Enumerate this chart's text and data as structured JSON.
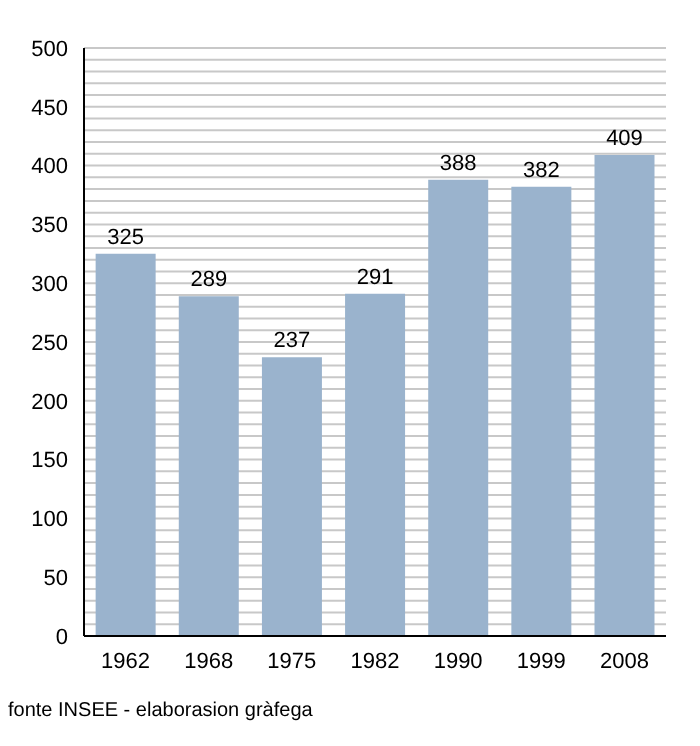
{
  "chart_data": {
    "type": "bar",
    "categories": [
      "1962",
      "1968",
      "1975",
      "1982",
      "1990",
      "1999",
      "2008"
    ],
    "values": [
      325,
      289,
      237,
      291,
      388,
      382,
      409
    ],
    "color": "#9ab3cd",
    "data_labels": true,
    "grid": "y",
    "ylim": [
      0,
      500
    ],
    "yticks": [
      0,
      {
        "value": 10,
        "label": null
      },
      {
        "value": 20,
        "label": null
      },
      {
        "value": 30,
        "label": null
      },
      {
        "value": 40,
        "label": null
      },
      50,
      {
        "value": 60,
        "label": null
      },
      {
        "value": 70,
        "label": null
      },
      {
        "value": 80,
        "label": null
      },
      {
        "value": 90,
        "label": null
      },
      100,
      {
        "value": 110,
        "label": null
      },
      {
        "value": 120,
        "label": null
      },
      {
        "value": 130,
        "label": null
      },
      {
        "value": 140,
        "label": null
      },
      150,
      {
        "value": 160,
        "label": null
      },
      {
        "value": 170,
        "label": null
      },
      {
        "value": 180,
        "label": null
      },
      {
        "value": 190,
        "label": null
      },
      200,
      {
        "value": 210,
        "label": null
      },
      {
        "value": 220,
        "label": null
      },
      {
        "value": 230,
        "label": null
      },
      {
        "value": 240,
        "label": null
      },
      250,
      {
        "value": 260,
        "label": null
      },
      {
        "value": 270,
        "label": null
      },
      {
        "value": 280,
        "label": null
      },
      {
        "value": 290,
        "label": null
      },
      300,
      {
        "value": 310,
        "label": null
      },
      {
        "value": 320,
        "label": null
      },
      {
        "value": 330,
        "label": null
      },
      {
        "value": 340,
        "label": null
      },
      350,
      {
        "value": 360,
        "label": null
      },
      {
        "value": 370,
        "label": null
      },
      {
        "value": 380,
        "label": null
      },
      {
        "value": 390,
        "label": null
      },
      400,
      {
        "value": 410,
        "label": null
      },
      {
        "value": 420,
        "label": null
      },
      {
        "value": 430,
        "label": null
      },
      {
        "value": 440,
        "label": null
      },
      450,
      {
        "value": 460,
        "label": null
      },
      {
        "value": 470,
        "label": null
      },
      {
        "value": 480,
        "label": null
      },
      {
        "value": 490,
        "label": null
      },
      500
    ],
    "annotations": [
      "fonte INSEE - elaborasion gràfega"
    ]
  }
}
